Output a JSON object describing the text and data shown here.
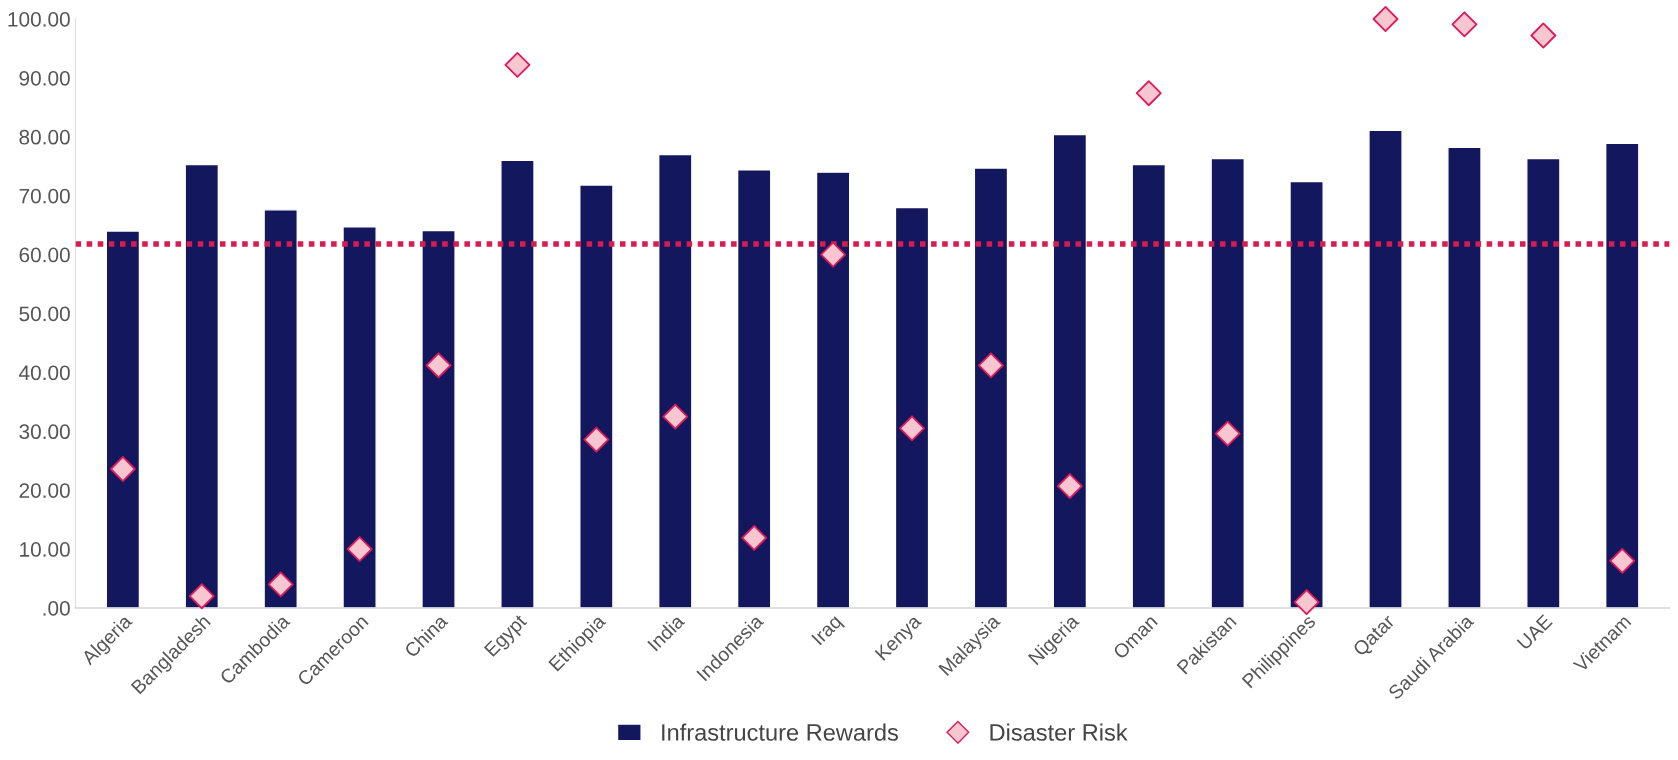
{
  "chart_data": {
    "type": "bar",
    "categories": [
      "Algeria",
      "Bangladesh",
      "Cambodia",
      "Cameroon",
      "China",
      "Egypt",
      "Ethiopia",
      "India",
      "Indonesia",
      "Iraq",
      "Kenya",
      "Malaysia",
      "Nigeria",
      "Oman",
      "Pakistan",
      "Philippines",
      "Qatar",
      "Saudi Arabia",
      "UAE",
      "Vietnam"
    ],
    "series": [
      {
        "name": "Infrastructure Rewards",
        "color": "#13175e",
        "values": [
          64,
          75.3,
          67.6,
          64.7,
          64.1,
          76,
          71.8,
          77,
          74.4,
          74,
          68,
          74.7,
          80.4,
          75.3,
          76.3,
          72.4,
          81.1,
          78.2,
          76.3,
          78.9
        ]
      },
      {
        "name": "Disaster Risk",
        "type": "scatter",
        "color": "#f7c6d0",
        "marker": "diamond",
        "values": [
          23.6,
          2,
          4,
          10,
          41.2,
          92.2,
          28.6,
          32.5,
          11.9,
          60,
          30.5,
          41.2,
          20.7,
          87.4,
          29.6,
          1,
          100,
          99.1,
          97.2,
          8
        ]
      }
    ],
    "ylim": [
      0,
      100
    ],
    "yticks": [
      {
        "value": 0,
        "label": ".00"
      },
      {
        "value": 10,
        "label": "10.00"
      },
      {
        "value": 20,
        "label": "20.00"
      },
      {
        "value": 30,
        "label": "30.00"
      },
      {
        "value": 40,
        "label": "40.00"
      },
      {
        "value": 50,
        "label": "50.00"
      },
      {
        "value": 60,
        "label": "60.00"
      },
      {
        "value": 70,
        "label": "70.00"
      },
      {
        "value": 80,
        "label": "80.00"
      },
      {
        "value": 90,
        "label": "90.00"
      },
      {
        "value": 100,
        "label": "100.00"
      }
    ],
    "ref_lines": [
      {
        "axis": "y",
        "value": 61.8,
        "color": "#d81b50",
        "line_style": "dotted"
      }
    ],
    "grid": false,
    "legend": "bottom"
  }
}
